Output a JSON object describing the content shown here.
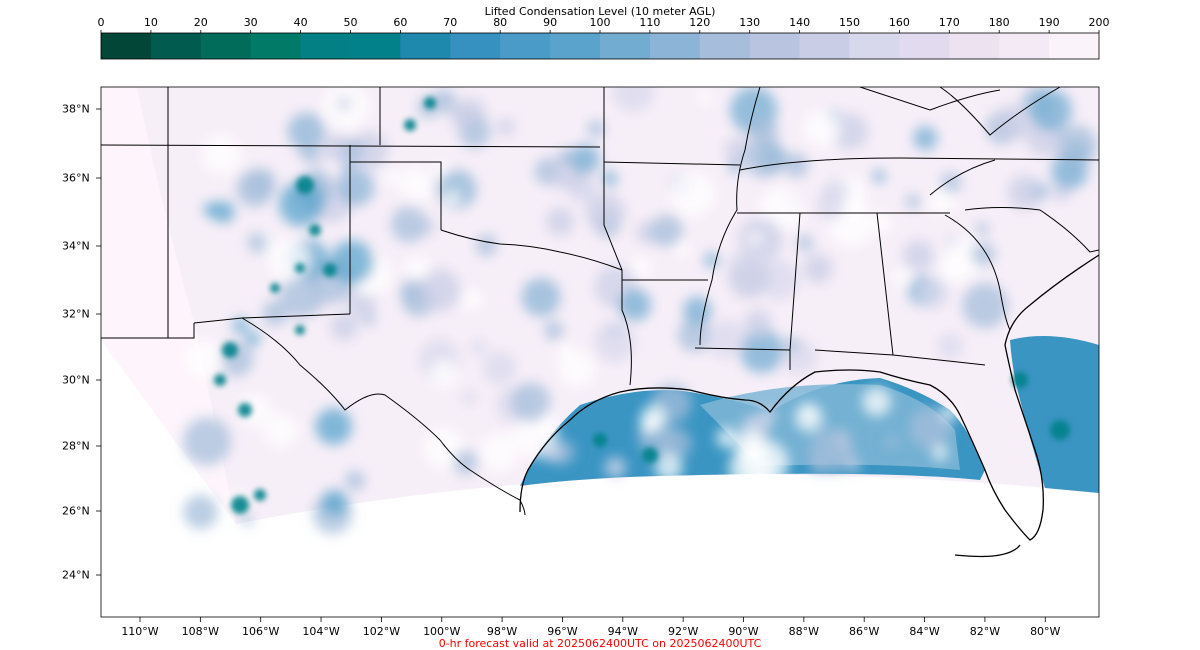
{
  "colorbar": {
    "title": "Lifted Condensation Level (10 meter AGL)",
    "ticks": [
      "0",
      "10",
      "20",
      "30",
      "40",
      "50",
      "60",
      "70",
      "80",
      "90",
      "100",
      "110",
      "120",
      "130",
      "140",
      "150",
      "160",
      "170",
      "180",
      "190",
      "200"
    ],
    "colors": [
      "#014636",
      "#015c4f",
      "#016c59",
      "#017a67",
      "#028083",
      "#02818a",
      "#1f89ad",
      "#3690c0",
      "#4a9bc8",
      "#5aa3cc",
      "#73acd1",
      "#8cb4d6",
      "#a6bddb",
      "#b8c4e0",
      "#c9cee6",
      "#d8d8ec",
      "#e2daee",
      "#ece2f0",
      "#f3eaf6",
      "#fbf3fa"
    ]
  },
  "map": {
    "lat_labels": [
      "38°N",
      "36°N",
      "34°N",
      "32°N",
      "30°N",
      "28°N",
      "26°N",
      "24°N"
    ],
    "lon_labels": [
      "110°W",
      "108°W",
      "106°W",
      "104°W",
      "102°W",
      "100°W",
      "98°W",
      "96°W",
      "94°W",
      "92°W",
      "90°W",
      "88°W",
      "86°W",
      "84°W",
      "82°W",
      "80°W"
    ],
    "colors": {
      "frame": "#000000",
      "land_base": "#f4ecf7",
      "outside_domain": "#fdf5fb",
      "gulf_water": "#3a95c3",
      "atlantic_water": "#3a95c3",
      "boundaries": "#000000",
      "dark_teal": "#02818a"
    }
  },
  "footer": {
    "text": "0-hr forecast valid at 2025062400UTC on 2025062400UTC"
  }
}
